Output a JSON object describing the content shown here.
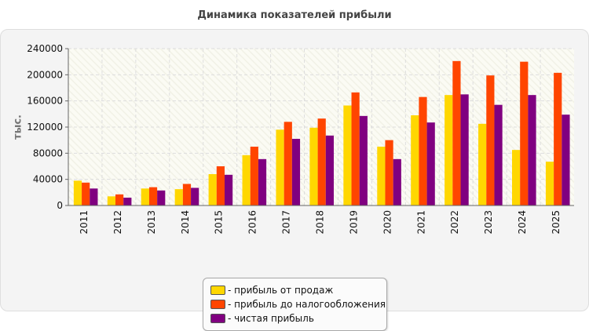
{
  "chart_data": {
    "type": "bar",
    "title": "Динамика показателей прибыли",
    "ylabel": "тыс.",
    "xlabel": "",
    "ylim": [
      0,
      240000
    ],
    "yticks": [
      0,
      40000,
      80000,
      120000,
      160000,
      200000,
      240000
    ],
    "grid": true,
    "legend_position": "bottom",
    "categories": [
      "2011",
      "2012",
      "2013",
      "2014",
      "2015",
      "2016",
      "2017",
      "2018",
      "2019",
      "2020",
      "2021",
      "2022",
      "2023",
      "2024",
      "2025"
    ],
    "series": [
      {
        "name": "- прибыль от продаж",
        "color": "#ffd700",
        "values": [
          38000,
          14000,
          26000,
          25000,
          48000,
          77000,
          116000,
          119000,
          153000,
          90000,
          138000,
          169000,
          125000,
          85000,
          67000
        ]
      },
      {
        "name": "- прибыль до налогообложения",
        "color": "#ff4500",
        "values": [
          35000,
          17000,
          28000,
          33000,
          60000,
          90000,
          128000,
          133000,
          173000,
          100000,
          166000,
          221000,
          199000,
          220000,
          203000
        ]
      },
      {
        "name": "- чистая прибыль",
        "color": "#800080",
        "values": [
          26000,
          12000,
          23000,
          27000,
          47000,
          71000,
          102000,
          107000,
          137000,
          71000,
          127000,
          170000,
          154000,
          169000,
          139000
        ]
      }
    ]
  }
}
